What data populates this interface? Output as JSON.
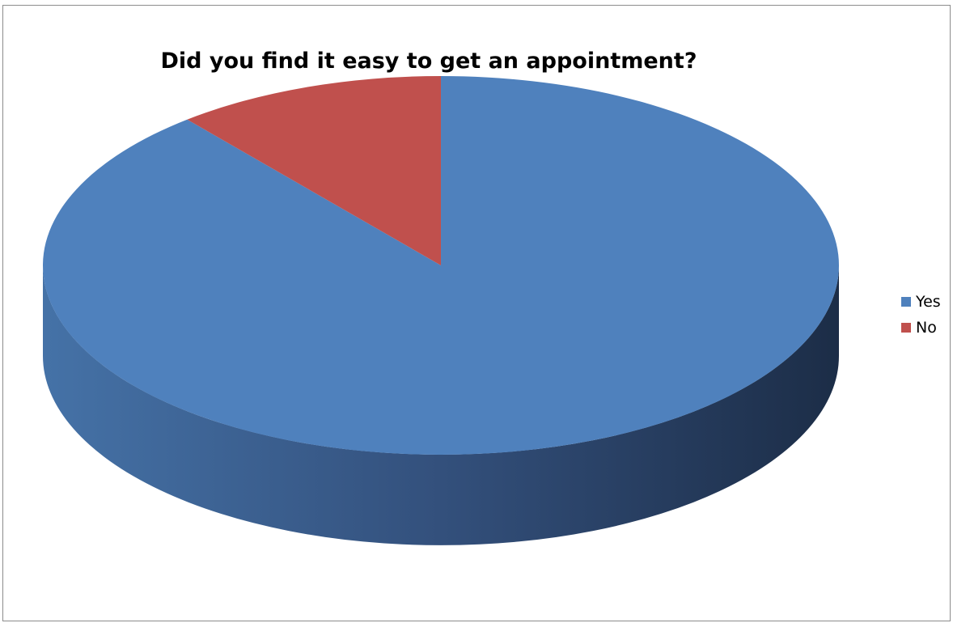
{
  "chart_data": {
    "type": "pie",
    "title": "Did you find it easy to get an appointment?",
    "categories": [
      "Yes",
      "No"
    ],
    "values": [
      89,
      11
    ],
    "colors": [
      "#4F81BD",
      "#C0504D"
    ],
    "legend_position": "right",
    "style": "3d"
  }
}
